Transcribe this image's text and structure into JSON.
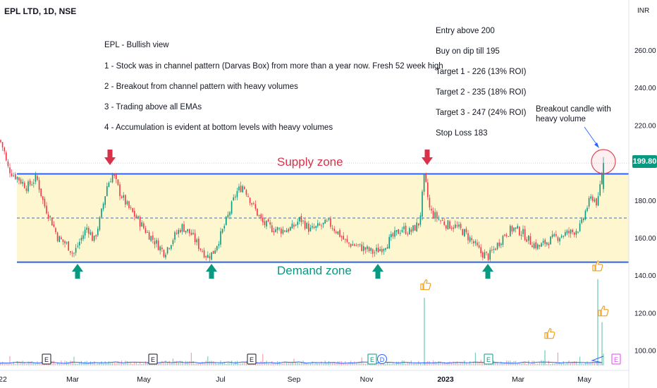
{
  "symbol_title": "EPL LTD, 1D, NSE",
  "currency": "INR",
  "last_price": "199.80",
  "notes": {
    "heading": "EPL - Bullish view",
    "points": [
      "1 - Stock was in channel pattern (Darvas Box) from more than a year now. Fresh 52 week high",
      "2 - Breakout from channel pattern with heavy volumes",
      "3 - Trading above all EMAs",
      "4 - Accumulation is evident at bottom levels with heavy volumes"
    ]
  },
  "trade_plan": [
    "Entry above 200",
    "Buy on dip till 195",
    "Target 1 - 226 (13% ROI)",
    "Target 2 - 235 (18% ROI)",
    "Target 3 - 247 (24% ROI)",
    "Stop Loss 183"
  ],
  "breakout_note": "Breakout candle with\nheavy volume",
  "zones": {
    "supply_label": "Supply zone",
    "demand_label": "Demand zone",
    "supply_price": 194,
    "demand_price": 147,
    "mid_price": 170.5
  },
  "colors": {
    "zone_fill": "#fef6cf",
    "zone_line": "#2962ff",
    "mid_line": "#4a7bd8",
    "up": "#089981",
    "down": "#f23645",
    "supply_arrow": "#d8324a",
    "demand_arrow": "#089981",
    "volume_ma": "#2962ff",
    "thumb": "#f5a623"
  },
  "chart_data": {
    "type": "candlestick",
    "price_axis": {
      "ticks": [
        "260.00",
        "240.00",
        "220.00",
        "200.00",
        "180.00",
        "160.00",
        "140.00",
        "120.00",
        "100.00"
      ],
      "tick_values": [
        260,
        240,
        220,
        200,
        180,
        160,
        140,
        120,
        100
      ],
      "range": [
        88,
        272
      ]
    },
    "time_axis": {
      "ticks": [
        "22",
        "Mar",
        "May",
        "Jul",
        "Sep",
        "Nov",
        "2023",
        "Mar",
        "May"
      ]
    },
    "price_path": [
      [
        0,
        212
      ],
      [
        6,
        206
      ],
      [
        10,
        198
      ],
      [
        18,
        194
      ],
      [
        25,
        192
      ],
      [
        38,
        187
      ],
      [
        52,
        192
      ],
      [
        62,
        178
      ],
      [
        72,
        170
      ],
      [
        82,
        160
      ],
      [
        96,
        156
      ],
      [
        104,
        151
      ],
      [
        113,
        158
      ],
      [
        124,
        166
      ],
      [
        133,
        158
      ],
      [
        142,
        170
      ],
      [
        152,
        188
      ],
      [
        160,
        194
      ],
      [
        170,
        184
      ],
      [
        182,
        176
      ],
      [
        195,
        170
      ],
      [
        208,
        163
      ],
      [
        222,
        157
      ],
      [
        233,
        152
      ],
      [
        246,
        160
      ],
      [
        258,
        166
      ],
      [
        271,
        162
      ],
      [
        283,
        155
      ],
      [
        294,
        150
      ],
      [
        302,
        152
      ],
      [
        314,
        162
      ],
      [
        324,
        172
      ],
      [
        335,
        184
      ],
      [
        345,
        188
      ],
      [
        358,
        178
      ],
      [
        372,
        168
      ],
      [
        386,
        165
      ],
      [
        400,
        164
      ],
      [
        414,
        165
      ],
      [
        426,
        170
      ],
      [
        440,
        164
      ],
      [
        453,
        166
      ],
      [
        466,
        168
      ],
      [
        479,
        163
      ],
      [
        492,
        157
      ],
      [
        505,
        156
      ],
      [
        518,
        154
      ],
      [
        530,
        152
      ],
      [
        543,
        155
      ],
      [
        556,
        160
      ],
      [
        570,
        165
      ],
      [
        582,
        163
      ],
      [
        595,
        168
      ],
      [
        602,
        193
      ],
      [
        610,
        174
      ],
      [
        622,
        170
      ],
      [
        634,
        167
      ],
      [
        646,
        166
      ],
      [
        658,
        163
      ],
      [
        670,
        158
      ],
      [
        682,
        152
      ],
      [
        693,
        150
      ],
      [
        705,
        156
      ],
      [
        716,
        162
      ],
      [
        728,
        165
      ],
      [
        740,
        163
      ],
      [
        752,
        158
      ],
      [
        764,
        155
      ],
      [
        776,
        158
      ],
      [
        788,
        160
      ],
      [
        800,
        162
      ],
      [
        812,
        163
      ],
      [
        824,
        166
      ],
      [
        832,
        176
      ],
      [
        840,
        182
      ],
      [
        848,
        178
      ],
      [
        852,
        190
      ],
      [
        856,
        199.8
      ]
    ],
    "supply_arrows_at_x": [
      156,
      606
    ],
    "demand_arrows_at_x": [
      110,
      300,
      536,
      692
    ],
    "volume_spikes": [
      {
        "x": 602,
        "value": 128
      },
      {
        "x": 773,
        "value": 100
      },
      {
        "x": 848,
        "value": 138
      },
      {
        "x": 854,
        "value": 115
      }
    ],
    "event_markers": [
      {
        "x": 66,
        "label": "E",
        "color": "#131722"
      },
      {
        "x": 217,
        "label": "E",
        "color": "#131722"
      },
      {
        "x": 357,
        "label": "E",
        "color": "#131722"
      },
      {
        "x": 528,
        "label": "E",
        "color": "#089981"
      },
      {
        "x": 542,
        "label": "D",
        "color": "#2962ff"
      },
      {
        "x": 693,
        "label": "E",
        "color": "#089981"
      },
      {
        "x": 874,
        "label": "E",
        "color": "#e040fb"
      }
    ],
    "thumbs_at": [
      {
        "x": 603,
        "price": 135
      },
      {
        "x": 779,
        "price": 109
      },
      {
        "x": 847,
        "price": 145
      },
      {
        "x": 855,
        "price": 121
      }
    ]
  }
}
